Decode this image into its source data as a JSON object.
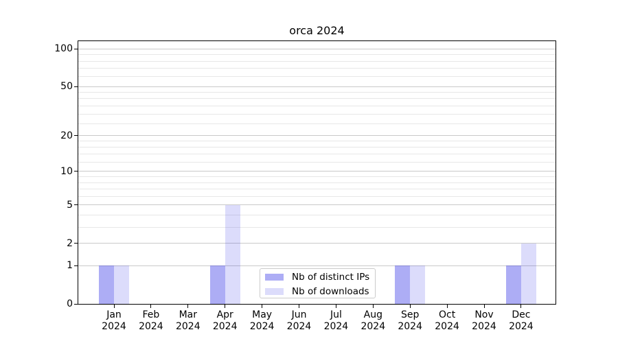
{
  "chart_data": {
    "type": "bar",
    "title": "orca 2024",
    "categories": [
      {
        "month": "Jan",
        "year": "2024"
      },
      {
        "month": "Feb",
        "year": "2024"
      },
      {
        "month": "Mar",
        "year": "2024"
      },
      {
        "month": "Apr",
        "year": "2024"
      },
      {
        "month": "May",
        "year": "2024"
      },
      {
        "month": "Jun",
        "year": "2024"
      },
      {
        "month": "Jul",
        "year": "2024"
      },
      {
        "month": "Aug",
        "year": "2024"
      },
      {
        "month": "Sep",
        "year": "2024"
      },
      {
        "month": "Oct",
        "year": "2024"
      },
      {
        "month": "Nov",
        "year": "2024"
      },
      {
        "month": "Dec",
        "year": "2024"
      }
    ],
    "series": [
      {
        "name": "Nb of distinct IPs",
        "color": "rgba(40,40,230,0.38)",
        "color_on_white": "#a9a9f3",
        "values": [
          1,
          0,
          0,
          1,
          0,
          0,
          0,
          0,
          1,
          0,
          0,
          1
        ]
      },
      {
        "name": "Nb of downloads",
        "color": "rgba(40,40,230,0.16)",
        "color_on_white": "#dcdcf9",
        "values": [
          1,
          0,
          0,
          5,
          0,
          0,
          0,
          0,
          1,
          0,
          0,
          2
        ]
      }
    ],
    "y_axis": {
      "scale": "log1p",
      "major_ticks": [
        0,
        1,
        2,
        5,
        10,
        20,
        50,
        100
      ],
      "minor_ticks": [
        3,
        4,
        6,
        7,
        8,
        9,
        12,
        14,
        16,
        18,
        25,
        30,
        35,
        40,
        45,
        60,
        70,
        80,
        90
      ],
      "range_max": 117
    },
    "legend_position": "lower center",
    "grid": true,
    "colors": {
      "major_gridline": "#c9c9c9",
      "minor_gridline": "#e7e7e7",
      "axis": "#000000",
      "background": "#ffffff"
    }
  }
}
